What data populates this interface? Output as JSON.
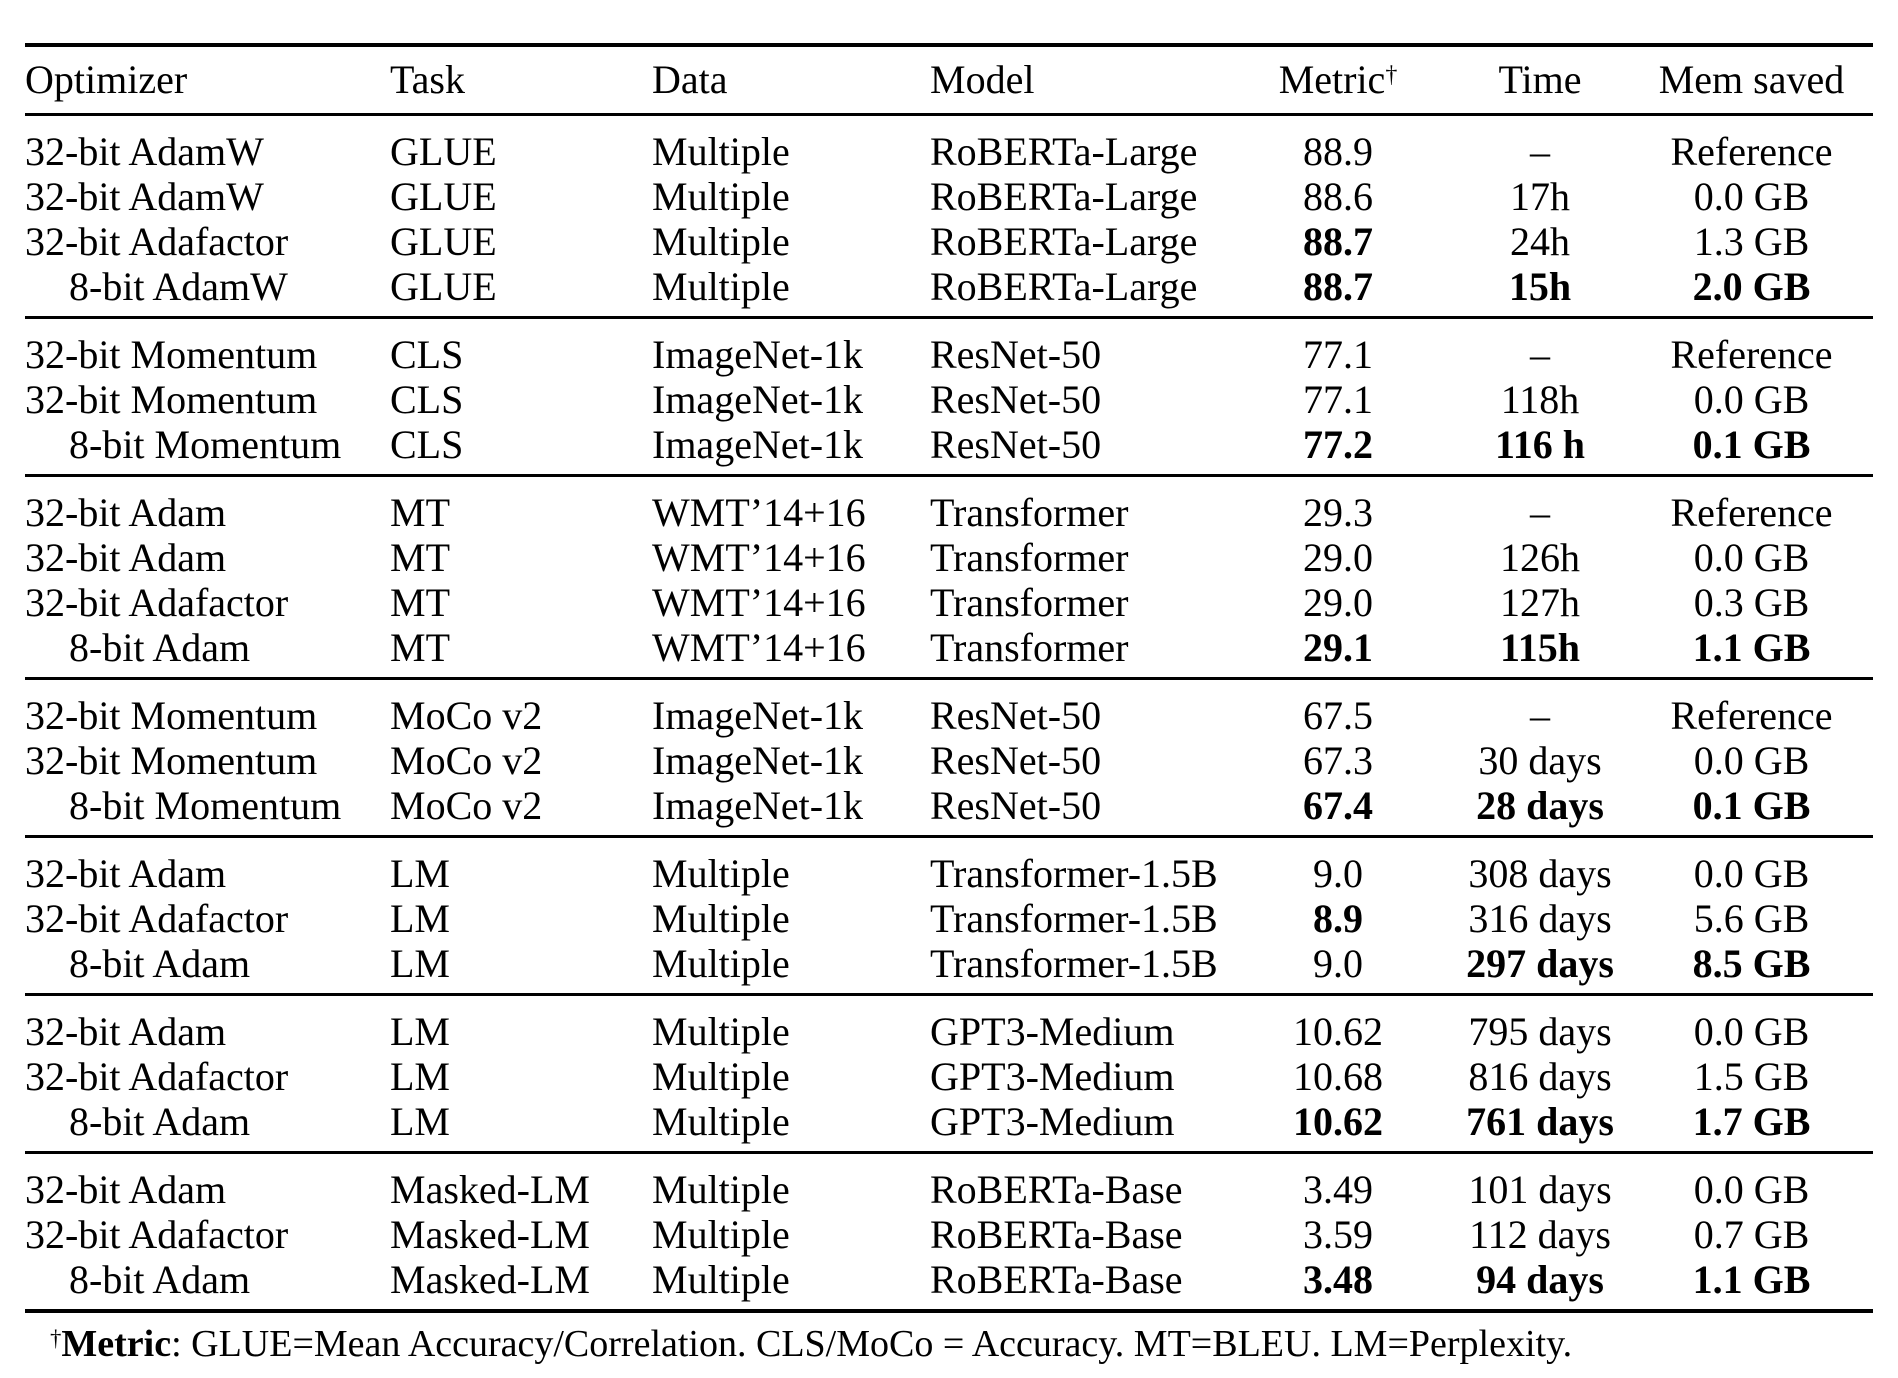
{
  "colors": {
    "text": "#000000",
    "background": "#ffffff",
    "rule": "#000000"
  },
  "table": {
    "columns": [
      {
        "key": "optimizer",
        "label": "Optimizer"
      },
      {
        "key": "task",
        "label": "Task"
      },
      {
        "key": "data",
        "label": "Data"
      },
      {
        "key": "model",
        "label": "Model"
      },
      {
        "key": "metric",
        "label": "Metric",
        "sup": "†"
      },
      {
        "key": "time",
        "label": "Time"
      },
      {
        "key": "mem-saved",
        "label": "Mem saved"
      }
    ],
    "groups": [
      {
        "rows": [
          {
            "indent": false,
            "bold": [],
            "cells": [
              "32-bit AdamW",
              "GLUE",
              "Multiple",
              "RoBERTa-Large",
              "88.9",
              "–",
              "Reference"
            ]
          },
          {
            "indent": false,
            "bold": [],
            "cells": [
              "32-bit AdamW",
              "GLUE",
              "Multiple",
              "RoBERTa-Large",
              "88.6",
              "17h",
              "0.0 GB"
            ]
          },
          {
            "indent": false,
            "bold": [
              4
            ],
            "cells": [
              "32-bit Adafactor",
              "GLUE",
              "Multiple",
              "RoBERTa-Large",
              "88.7",
              "24h",
              "1.3 GB"
            ]
          },
          {
            "indent": true,
            "bold": [
              4,
              5,
              6
            ],
            "cells": [
              "8-bit AdamW",
              "GLUE",
              "Multiple",
              "RoBERTa-Large",
              "88.7",
              "15h",
              "2.0 GB"
            ]
          }
        ]
      },
      {
        "rows": [
          {
            "indent": false,
            "bold": [],
            "cells": [
              "32-bit Momentum",
              "CLS",
              "ImageNet-1k",
              "ResNet-50",
              "77.1",
              "–",
              "Reference"
            ]
          },
          {
            "indent": false,
            "bold": [],
            "cells": [
              "32-bit Momentum",
              "CLS",
              "ImageNet-1k",
              "ResNet-50",
              "77.1",
              "118h",
              "0.0 GB"
            ]
          },
          {
            "indent": true,
            "bold": [
              4,
              5,
              6
            ],
            "cells": [
              "8-bit Momentum",
              "CLS",
              "ImageNet-1k",
              "ResNet-50",
              "77.2",
              "116 h",
              "0.1 GB"
            ]
          }
        ]
      },
      {
        "rows": [
          {
            "indent": false,
            "bold": [],
            "cells": [
              "32-bit Adam",
              "MT",
              "WMT’14+16",
              "Transformer",
              "29.3",
              "–",
              "Reference"
            ]
          },
          {
            "indent": false,
            "bold": [],
            "cells": [
              "32-bit Adam",
              "MT",
              "WMT’14+16",
              "Transformer",
              "29.0",
              "126h",
              "0.0 GB"
            ]
          },
          {
            "indent": false,
            "bold": [],
            "cells": [
              "32-bit Adafactor",
              "MT",
              "WMT’14+16",
              "Transformer",
              "29.0",
              "127h",
              "0.3 GB"
            ]
          },
          {
            "indent": true,
            "bold": [
              4,
              5,
              6
            ],
            "cells": [
              "8-bit Adam",
              "MT",
              "WMT’14+16",
              "Transformer",
              "29.1",
              "115h",
              "1.1 GB"
            ]
          }
        ]
      },
      {
        "rows": [
          {
            "indent": false,
            "bold": [],
            "cells": [
              "32-bit Momentum",
              "MoCo v2",
              "ImageNet-1k",
              "ResNet-50",
              "67.5",
              "–",
              "Reference"
            ]
          },
          {
            "indent": false,
            "bold": [],
            "cells": [
              "32-bit Momentum",
              "MoCo v2",
              "ImageNet-1k",
              "ResNet-50",
              "67.3",
              "30 days",
              "0.0 GB"
            ]
          },
          {
            "indent": true,
            "bold": [
              4,
              5,
              6
            ],
            "cells": [
              "8-bit Momentum",
              "MoCo v2",
              "ImageNet-1k",
              "ResNet-50",
              "67.4",
              "28 days",
              "0.1 GB"
            ]
          }
        ]
      },
      {
        "rows": [
          {
            "indent": false,
            "bold": [],
            "cells": [
              "32-bit Adam",
              "LM",
              "Multiple",
              "Transformer-1.5B",
              "9.0",
              "308 days",
              "0.0 GB"
            ]
          },
          {
            "indent": false,
            "bold": [
              4
            ],
            "cells": [
              "32-bit Adafactor",
              "LM",
              "Multiple",
              "Transformer-1.5B",
              "8.9",
              "316 days",
              "5.6 GB"
            ]
          },
          {
            "indent": true,
            "bold": [
              5,
              6
            ],
            "cells": [
              "8-bit Adam",
              "LM",
              "Multiple",
              "Transformer-1.5B",
              "9.0",
              "297 days",
              "8.5 GB"
            ]
          }
        ]
      },
      {
        "rows": [
          {
            "indent": false,
            "bold": [],
            "cells": [
              "32-bit Adam",
              "LM",
              "Multiple",
              "GPT3-Medium",
              "10.62",
              "795 days",
              "0.0 GB"
            ]
          },
          {
            "indent": false,
            "bold": [],
            "cells": [
              "32-bit Adafactor",
              "LM",
              "Multiple",
              "GPT3-Medium",
              "10.68",
              "816 days",
              "1.5 GB"
            ]
          },
          {
            "indent": true,
            "bold": [
              4,
              5,
              6
            ],
            "cells": [
              "8-bit Adam",
              "LM",
              "Multiple",
              "GPT3-Medium",
              "10.62",
              "761 days",
              "1.7 GB"
            ]
          }
        ]
      },
      {
        "rows": [
          {
            "indent": false,
            "bold": [],
            "cells": [
              "32-bit Adam",
              "Masked-LM",
              "Multiple",
              "RoBERTa-Base",
              "3.49",
              "101 days",
              "0.0 GB"
            ]
          },
          {
            "indent": false,
            "bold": [],
            "cells": [
              "32-bit Adafactor",
              "Masked-LM",
              "Multiple",
              "RoBERTa-Base",
              "3.59",
              "112 days",
              "0.7 GB"
            ]
          },
          {
            "indent": true,
            "bold": [
              4,
              5,
              6
            ],
            "cells": [
              "8-bit Adam",
              "Masked-LM",
              "Multiple",
              "RoBERTa-Base",
              "3.48",
              "94 days",
              "1.1 GB"
            ]
          }
        ]
      }
    ]
  },
  "footnote": {
    "dagger": "†",
    "label": "Metric",
    "text": ": GLUE=Mean Accuracy/Correlation. CLS/MoCo = Accuracy. MT=BLEU. LM=Perplexity."
  }
}
